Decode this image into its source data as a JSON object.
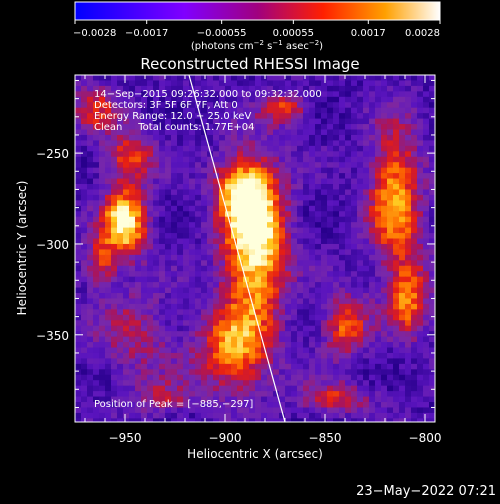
{
  "chart_data": {
    "type": "heatmap",
    "title": "Reconstructed RHESSI Image",
    "xlabel": "Heliocentric X (arcsec)",
    "ylabel": "Heliocentric Y (arcsec)",
    "xlim": [
      -975,
      -795
    ],
    "ylim": [
      -398,
      -207
    ],
    "x_ticks": [
      -950,
      -900,
      -850,
      -800
    ],
    "x_tick_labels": [
      "−950",
      "−900",
      "−850",
      "−800"
    ],
    "y_ticks": [
      -250,
      -300,
      -350
    ],
    "y_tick_labels": [
      "−250",
      "−300",
      "−350"
    ],
    "colorbar": {
      "range": [
        -0.0028,
        0.0028
      ],
      "ticks": [
        -0.0028,
        -0.0017,
        -0.00055,
        0.00055,
        0.0017,
        0.0028
      ],
      "tick_labels": [
        "−0.0028",
        "−0.0017",
        "−0.00055",
        "0.00055",
        "0.0017",
        "0.0028"
      ],
      "units_prefix": "(photons cm",
      "units_exp1": "−2",
      "units_mid1": " s",
      "units_exp2": "−1",
      "units_mid2": " asec",
      "units_exp3": "−2",
      "units_suffix": ")"
    },
    "annotations": [
      "14−Sep−2015 09:26:32.000 to 09:32:32.000",
      "Detectors: 3F 5F 6F 7F, Att 0",
      "Energy Range: 12.0 − 25.0 keV",
      "Clean     Total counts: 1.77E+04"
    ],
    "peak_label": "Position of Peak = [−885,−297]",
    "peak": [
      -885,
      -297
    ],
    "limb_line": [
      [
        -918,
        -207
      ],
      [
        -870,
        -398
      ]
    ],
    "sources": [
      {
        "x": -885,
        "y": -297,
        "sx": 11,
        "sy": 28,
        "amp": 1.0
      },
      {
        "x": -893,
        "y": -270,
        "sx": 9,
        "sy": 12,
        "amp": 0.55
      },
      {
        "x": -950,
        "y": -288,
        "sx": 8,
        "sy": 13,
        "amp": 0.9
      },
      {
        "x": -962,
        "y": -310,
        "sx": 6,
        "sy": 9,
        "amp": 0.45
      },
      {
        "x": -948,
        "y": -252,
        "sx": 9,
        "sy": 10,
        "amp": 0.5
      },
      {
        "x": -815,
        "y": -275,
        "sx": 9,
        "sy": 28,
        "amp": 0.7
      },
      {
        "x": -808,
        "y": -330,
        "sx": 7,
        "sy": 15,
        "amp": 0.55
      },
      {
        "x": -895,
        "y": -358,
        "sx": 13,
        "sy": 17,
        "amp": 0.65
      },
      {
        "x": -840,
        "y": -345,
        "sx": 8,
        "sy": 12,
        "amp": 0.55
      },
      {
        "x": -945,
        "y": -350,
        "sx": 14,
        "sy": 18,
        "amp": 0.3
      },
      {
        "x": -965,
        "y": -225,
        "sx": 8,
        "sy": 10,
        "amp": 0.4
      },
      {
        "x": -870,
        "y": -226,
        "sx": 8,
        "sy": 6,
        "amp": 0.5
      },
      {
        "x": -845,
        "y": -385,
        "sx": 12,
        "sy": 6,
        "amp": 0.45
      },
      {
        "x": -930,
        "y": -385,
        "sx": 10,
        "sy": 7,
        "amp": 0.3
      }
    ]
  },
  "footer_date": "23−May−2022 07:21"
}
